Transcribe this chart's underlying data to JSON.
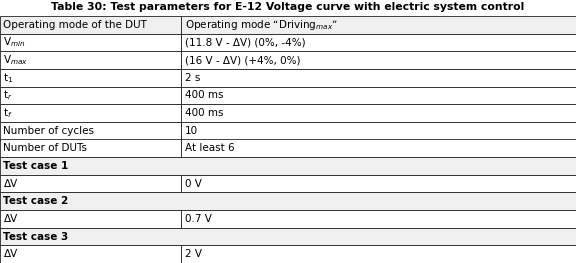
{
  "title": "Table 30: Test parameters for E-12 Voltage curve with electric system control",
  "col_labels": [
    "Operating mode of the DUT",
    "Operating mode “Driving$_{max}$”"
  ],
  "rows_left": [
    "V$_{min}$",
    "V$_{max}$",
    "t$_{1}$",
    "t$_{r}$",
    "t$_{f}$",
    "Number of cycles",
    "Number of DUTs",
    "Test case 1",
    "ΔV",
    "Test case 2",
    "ΔV",
    "Test case 3",
    "ΔV"
  ],
  "rows_right": [
    "(11.8 V - ΔV) (0%, -4%)",
    "(16 V - ΔV) (+4%, 0%)",
    "2 s",
    "400 ms",
    "400 ms",
    "10",
    "At least 6",
    "",
    "0 V",
    "",
    "0.7 V",
    "",
    "2 V"
  ],
  "row_bold": [
    false,
    false,
    false,
    false,
    false,
    false,
    false,
    true,
    false,
    true,
    false,
    true,
    false
  ],
  "row_span": [
    false,
    false,
    false,
    false,
    false,
    false,
    false,
    true,
    false,
    true,
    false,
    true,
    false
  ],
  "col_split": 0.315,
  "title_fontsize": 7.8,
  "cell_fontsize": 7.5,
  "bg_normal": "#ffffff",
  "bg_bold": "#f0f0f0",
  "bg_header": "#f0f0f0",
  "border_color": "#222222",
  "title_color": "#000000",
  "text_color": "#000000",
  "fig_width": 5.76,
  "fig_height": 2.63,
  "dpi": 100
}
